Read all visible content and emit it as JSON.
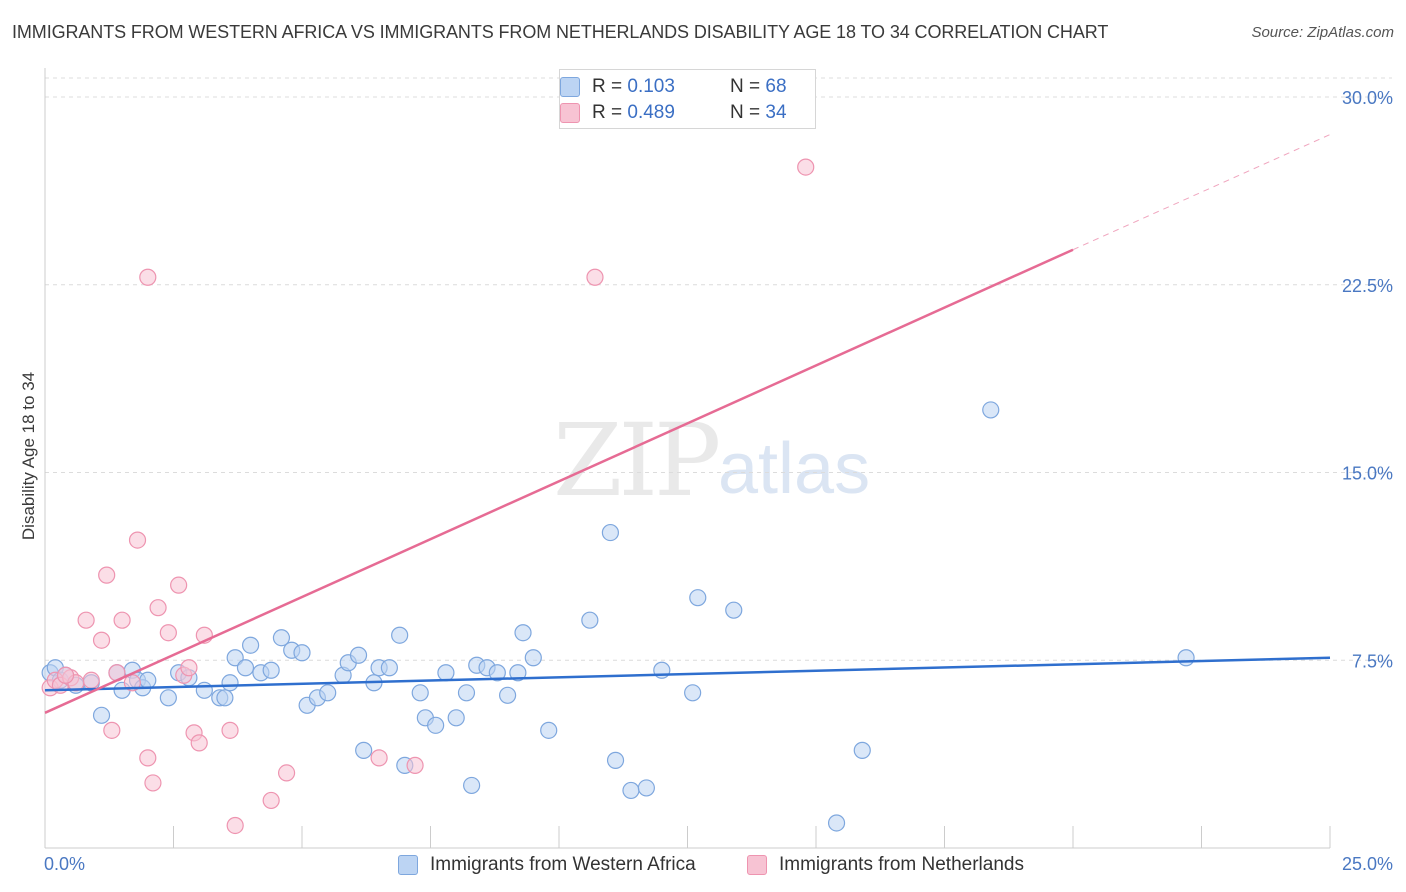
{
  "title": "IMMIGRANTS FROM WESTERN AFRICA VS IMMIGRANTS FROM NETHERLANDS DISABILITY AGE 18 TO 34 CORRELATION CHART",
  "source": "Source: ZipAtlas.com",
  "watermark": {
    "zip": "ZIP",
    "atlas": "atlas"
  },
  "legend_top": {
    "series1": {
      "r_label": "R = ",
      "r_value": "0.103",
      "n_label": "N = ",
      "n_value": "68"
    },
    "series2": {
      "r_label": "R = ",
      "r_value": "0.489",
      "n_label": "N = ",
      "n_value": "34"
    }
  },
  "colors": {
    "blue_fill": "#bcd4f3",
    "blue_stroke": "#7ea7de",
    "blue_line": "#2f6fce",
    "pink_fill": "#f7c3d3",
    "pink_stroke": "#ee94b0",
    "pink_line": "#e66b94",
    "grid": "#dcdcdc",
    "tick_text": "#4a78c2"
  },
  "chart_data": {
    "type": "scatter",
    "title": "IMMIGRANTS FROM WESTERN AFRICA VS IMMIGRANTS FROM NETHERLANDS DISABILITY AGE 18 TO 34 CORRELATION CHART",
    "xlabel": "",
    "ylabel": "Disability Age 18 to 34",
    "xlim": [
      0,
      25
    ],
    "ylim": [
      0,
      30
    ],
    "x_tick_labels": [
      "0.0%",
      "25.0%"
    ],
    "y_ticks": [
      7.5,
      15.0,
      22.5,
      30.0
    ],
    "y_tick_labels": [
      "7.5%",
      "15.0%",
      "22.5%",
      "30.0%"
    ],
    "grid": "horizontal dashed",
    "legend_position": "top-center",
    "series": [
      {
        "name": "Immigrants from Western Africa",
        "color": "#7ea7de",
        "trend": {
          "x": [
            0,
            25
          ],
          "y": [
            6.3,
            7.6
          ]
        },
        "points": [
          [
            0.1,
            7.0
          ],
          [
            0.2,
            7.2
          ],
          [
            0.3,
            6.7
          ],
          [
            0.4,
            6.9
          ],
          [
            0.6,
            6.5
          ],
          [
            0.9,
            6.6
          ],
          [
            1.1,
            5.3
          ],
          [
            1.4,
            7.0
          ],
          [
            1.5,
            6.3
          ],
          [
            1.7,
            7.1
          ],
          [
            1.8,
            6.7
          ],
          [
            1.9,
            6.4
          ],
          [
            2.0,
            6.7
          ],
          [
            2.4,
            6.0
          ],
          [
            2.6,
            7.0
          ],
          [
            2.8,
            6.8
          ],
          [
            3.1,
            6.3
          ],
          [
            3.4,
            6.0
          ],
          [
            3.5,
            6.0
          ],
          [
            3.6,
            6.6
          ],
          [
            3.7,
            7.6
          ],
          [
            3.9,
            7.2
          ],
          [
            4.0,
            8.1
          ],
          [
            4.2,
            7.0
          ],
          [
            4.4,
            7.1
          ],
          [
            4.6,
            8.4
          ],
          [
            4.8,
            7.9
          ],
          [
            5.0,
            7.8
          ],
          [
            5.1,
            5.7
          ],
          [
            5.3,
            6.0
          ],
          [
            5.5,
            6.2
          ],
          [
            5.8,
            6.9
          ],
          [
            5.9,
            7.4
          ],
          [
            6.1,
            7.7
          ],
          [
            6.2,
            3.9
          ],
          [
            6.4,
            6.6
          ],
          [
            6.5,
            7.2
          ],
          [
            6.7,
            7.2
          ],
          [
            6.9,
            8.5
          ],
          [
            7.0,
            3.3
          ],
          [
            7.3,
            6.2
          ],
          [
            7.4,
            5.2
          ],
          [
            7.6,
            4.9
          ],
          [
            7.8,
            7.0
          ],
          [
            8.0,
            5.2
          ],
          [
            8.2,
            6.2
          ],
          [
            8.3,
            2.5
          ],
          [
            8.4,
            7.3
          ],
          [
            8.6,
            7.2
          ],
          [
            8.8,
            7.0
          ],
          [
            9.0,
            6.1
          ],
          [
            9.2,
            7.0
          ],
          [
            9.3,
            8.6
          ],
          [
            9.5,
            7.6
          ],
          [
            9.8,
            4.7
          ],
          [
            10.6,
            9.1
          ],
          [
            11.0,
            12.6
          ],
          [
            11.1,
            3.5
          ],
          [
            11.4,
            2.3
          ],
          [
            11.7,
            2.4
          ],
          [
            12.0,
            7.1
          ],
          [
            12.6,
            6.2
          ],
          [
            12.7,
            10.0
          ],
          [
            13.4,
            9.5
          ],
          [
            15.4,
            1.0
          ],
          [
            15.9,
            3.9
          ],
          [
            18.4,
            17.5
          ],
          [
            22.2,
            7.6
          ]
        ]
      },
      {
        "name": "Immigrants from Netherlands",
        "color": "#ee94b0",
        "trend": {
          "x": [
            0,
            20
          ],
          "y": [
            5.4,
            23.9
          ]
        },
        "trend_dashed": {
          "x": [
            20,
            25
          ],
          "y": [
            23.9,
            28.5
          ]
        },
        "points": [
          [
            0.1,
            6.4
          ],
          [
            0.2,
            6.7
          ],
          [
            0.3,
            6.5
          ],
          [
            0.5,
            6.8
          ],
          [
            0.9,
            6.7
          ],
          [
            1.1,
            8.3
          ],
          [
            1.2,
            10.9
          ],
          [
            1.3,
            4.7
          ],
          [
            1.4,
            7.0
          ],
          [
            1.5,
            9.1
          ],
          [
            1.7,
            6.6
          ],
          [
            1.8,
            12.3
          ],
          [
            2.0,
            22.8
          ],
          [
            2.0,
            3.6
          ],
          [
            2.1,
            2.6
          ],
          [
            2.2,
            9.6
          ],
          [
            2.4,
            8.6
          ],
          [
            2.6,
            10.5
          ],
          [
            2.7,
            6.9
          ],
          [
            2.8,
            7.2
          ],
          [
            2.9,
            4.6
          ],
          [
            3.0,
            4.2
          ],
          [
            3.1,
            8.5
          ],
          [
            3.6,
            4.7
          ],
          [
            3.7,
            0.9
          ],
          [
            4.4,
            1.9
          ],
          [
            4.7,
            3.0
          ],
          [
            6.5,
            3.6
          ],
          [
            7.2,
            3.3
          ],
          [
            10.7,
            22.8
          ],
          [
            14.8,
            27.2
          ],
          [
            0.8,
            9.1
          ],
          [
            0.6,
            6.6
          ],
          [
            0.4,
            6.9
          ]
        ]
      }
    ]
  },
  "bottom_legend": {
    "series1": "Immigrants from Western Africa",
    "series2": "Immigrants from Netherlands"
  }
}
